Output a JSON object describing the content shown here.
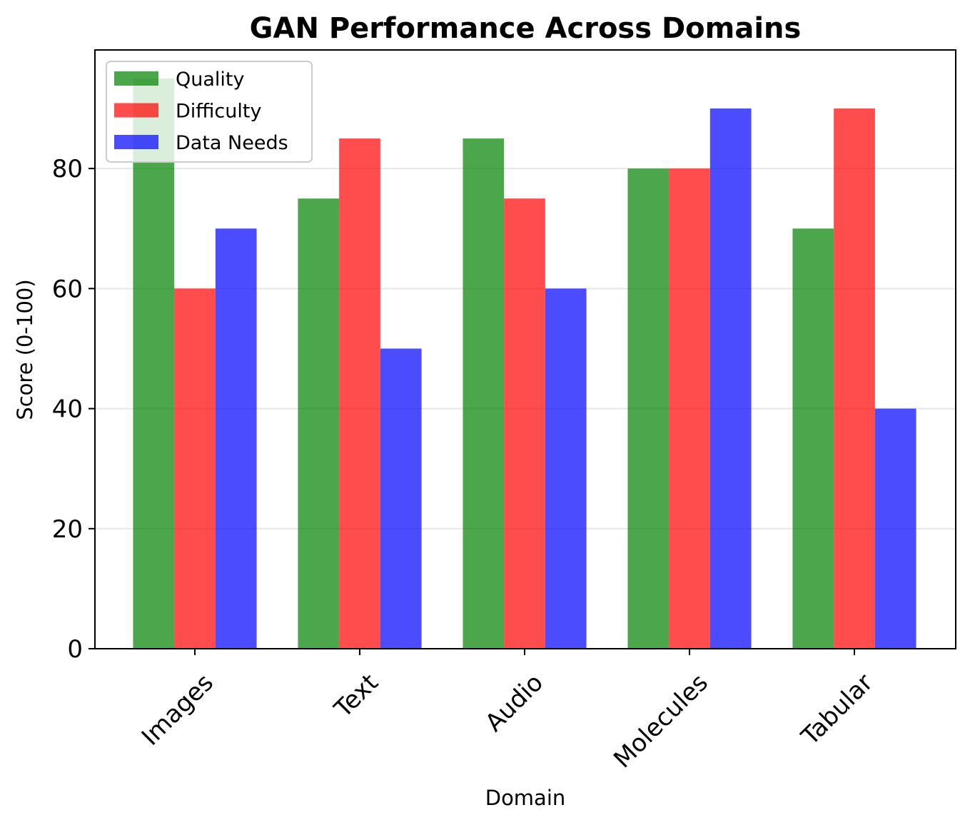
{
  "chart_data": {
    "type": "bar",
    "title": "GAN Performance Across Domains",
    "xlabel": "Domain",
    "ylabel": "Score (0-100)",
    "categories": [
      "Images",
      "Text",
      "Audio",
      "Molecules",
      "Tabular"
    ],
    "series": [
      {
        "name": "Quality",
        "color": "#008000",
        "values": [
          95,
          75,
          85,
          80,
          70
        ]
      },
      {
        "name": "Difficulty",
        "color": "#ff0000",
        "values": [
          60,
          85,
          75,
          80,
          90
        ]
      },
      {
        "name": "Data Needs",
        "color": "#0000ff",
        "values": [
          70,
          50,
          60,
          90,
          40
        ]
      }
    ],
    "yticks": [
      0,
      20,
      40,
      60,
      80
    ],
    "ylim": [
      0,
      99.75
    ],
    "grid": "horizontal",
    "legend_position": "top-left",
    "bar_opacity": 0.7
  }
}
